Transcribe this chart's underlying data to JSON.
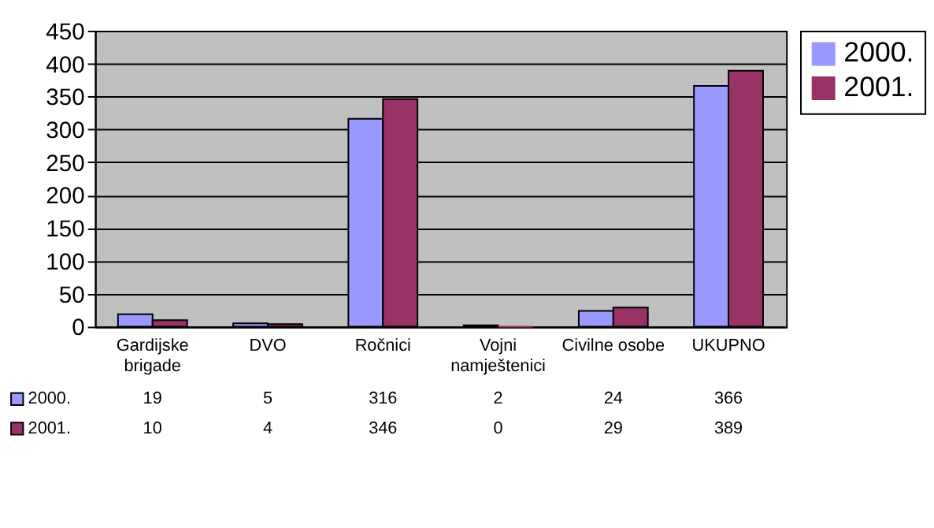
{
  "chart_data": {
    "type": "bar",
    "categories": [
      "Gardijske\nbrigade",
      "DVO",
      "Ročnici",
      "Vojni\nnamještenici",
      "Civilne osobe",
      "UKUPNO"
    ],
    "series": [
      {
        "name": "2000.",
        "color": "#9999ff",
        "values": [
          19,
          5,
          316,
          2,
          24,
          366
        ]
      },
      {
        "name": "2001.",
        "color": "#993366",
        "values": [
          10,
          4,
          346,
          0,
          29,
          389
        ]
      }
    ],
    "ylim": [
      0,
      450
    ],
    "yticks": [
      0,
      50,
      100,
      150,
      200,
      250,
      300,
      350,
      400,
      450
    ],
    "grid": "y",
    "legend": "right",
    "data_labels": true
  }
}
